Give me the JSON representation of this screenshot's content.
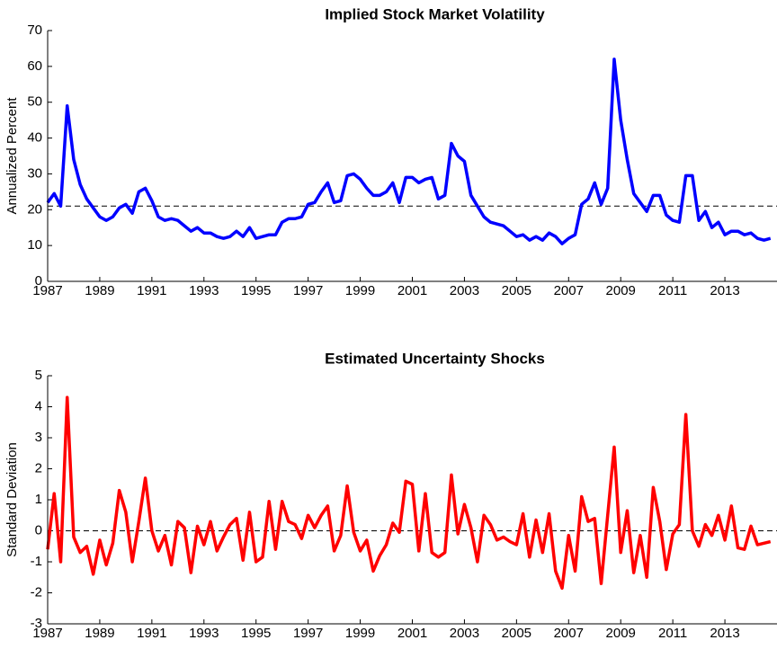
{
  "chart_data": [
    {
      "type": "line",
      "title": "Implied Stock Market Volatility",
      "ylabel": "Annualized Percent",
      "x": [
        1987,
        1987.25,
        1987.5,
        1987.75,
        1988,
        1988.25,
        1988.5,
        1988.75,
        1989,
        1989.25,
        1989.5,
        1989.75,
        1990,
        1990.25,
        1990.5,
        1990.75,
        1991,
        1991.25,
        1991.5,
        1991.75,
        1992,
        1992.25,
        1992.5,
        1992.75,
        1993,
        1993.25,
        1993.5,
        1993.75,
        1994,
        1994.25,
        1994.5,
        1994.75,
        1995,
        1995.25,
        1995.5,
        1995.75,
        1996,
        1996.25,
        1996.5,
        1996.75,
        1997,
        1997.25,
        1997.5,
        1997.75,
        1998,
        1998.25,
        1998.5,
        1998.75,
        1999,
        1999.25,
        1999.5,
        1999.75,
        2000,
        2000.25,
        2000.5,
        2000.75,
        2001,
        2001.25,
        2001.5,
        2001.75,
        2002,
        2002.25,
        2002.5,
        2002.75,
        2003,
        2003.25,
        2003.5,
        2003.75,
        2004,
        2004.25,
        2004.5,
        2004.75,
        2005,
        2005.25,
        2005.5,
        2005.75,
        2006,
        2006.25,
        2006.5,
        2006.75,
        2007,
        2007.25,
        2007.5,
        2007.75,
        2008,
        2008.25,
        2008.5,
        2008.75,
        2009,
        2009.25,
        2009.5,
        2009.75,
        2010,
        2010.25,
        2010.5,
        2010.75,
        2011,
        2011.25,
        2011.5,
        2011.75,
        2012,
        2012.25,
        2012.5,
        2012.75,
        2013,
        2013.25,
        2013.5,
        2013.75,
        2014,
        2014.25,
        2014.5,
        2014.75
      ],
      "series": [
        {
          "color": "#0000ff",
          "values": [
            22,
            24.5,
            21,
            49,
            34,
            27,
            23,
            20.5,
            18,
            17,
            18,
            20.5,
            21.5,
            19,
            25,
            26,
            22.5,
            18,
            17,
            17.5,
            17,
            15.5,
            14,
            15,
            13.5,
            13.5,
            12.5,
            12,
            12.5,
            14,
            12.5,
            15,
            12,
            12.5,
            13,
            13,
            16.5,
            17.5,
            17.5,
            18,
            21.5,
            22,
            25,
            27.5,
            22,
            22.5,
            29.5,
            30,
            28.5,
            26,
            24,
            24,
            25,
            27.5,
            22,
            29,
            29,
            27.5,
            28.5,
            29,
            23,
            24,
            38.5,
            35,
            33.5,
            24,
            21,
            18,
            16.5,
            16,
            15.5,
            14,
            12.5,
            13,
            11.5,
            12.5,
            11.5,
            13.5,
            12.5,
            10.5,
            12,
            13,
            21.5,
            23,
            27.5,
            21.5,
            26,
            62,
            45,
            34,
            24.5,
            22,
            19.5,
            24,
            24,
            18.5,
            17,
            16.5,
            29.5,
            29.5,
            17,
            19.5,
            15,
            16.5,
            13,
            14,
            14,
            13,
            13.5,
            12,
            11.5,
            12
          ]
        }
      ],
      "reference_line": 21,
      "xlim": [
        1987,
        2015
      ],
      "xticks": [
        1987,
        1989,
        1991,
        1993,
        1995,
        1997,
        1999,
        2001,
        2003,
        2005,
        2007,
        2009,
        2011,
        2013
      ],
      "ylim": [
        0,
        70
      ],
      "yticks": [
        0,
        10,
        20,
        30,
        40,
        50,
        60,
        70
      ]
    },
    {
      "type": "line",
      "title": "Estimated Uncertainty Shocks",
      "ylabel": "Standard Deviation",
      "x": [
        1987,
        1987.25,
        1987.5,
        1987.75,
        1988,
        1988.25,
        1988.5,
        1988.75,
        1989,
        1989.25,
        1989.5,
        1989.75,
        1990,
        1990.25,
        1990.5,
        1990.75,
        1991,
        1991.25,
        1991.5,
        1991.75,
        1992,
        1992.25,
        1992.5,
        1992.75,
        1993,
        1993.25,
        1993.5,
        1993.75,
        1994,
        1994.25,
        1994.5,
        1994.75,
        1995,
        1995.25,
        1995.5,
        1995.75,
        1996,
        1996.25,
        1996.5,
        1996.75,
        1997,
        1997.25,
        1997.5,
        1997.75,
        1998,
        1998.25,
        1998.5,
        1998.75,
        1999,
        1999.25,
        1999.5,
        1999.75,
        2000,
        2000.25,
        2000.5,
        2000.75,
        2001,
        2001.25,
        2001.5,
        2001.75,
        2002,
        2002.25,
        2002.5,
        2002.75,
        2003,
        2003.25,
        2003.5,
        2003.75,
        2004,
        2004.25,
        2004.5,
        2004.75,
        2005,
        2005.25,
        2005.5,
        2005.75,
        2006,
        2006.25,
        2006.5,
        2006.75,
        2007,
        2007.25,
        2007.5,
        2007.75,
        2008,
        2008.25,
        2008.5,
        2008.75,
        2009,
        2009.25,
        2009.5,
        2009.75,
        2010,
        2010.25,
        2010.5,
        2010.75,
        2011,
        2011.25,
        2011.5,
        2011.75,
        2012,
        2012.25,
        2012.5,
        2012.75,
        2013,
        2013.25,
        2013.5,
        2013.75,
        2014,
        2014.25,
        2014.5,
        2014.75
      ],
      "series": [
        {
          "color": "#ff0000",
          "values": [
            -0.6,
            1.2,
            -1.0,
            4.3,
            -0.2,
            -0.7,
            -0.5,
            -1.4,
            -0.3,
            -1.1,
            -0.4,
            1.3,
            0.6,
            -1.0,
            0.3,
            1.7,
            0.0,
            -0.65,
            -0.15,
            -1.1,
            0.3,
            0.1,
            -1.35,
            0.15,
            -0.45,
            0.3,
            -0.65,
            -0.2,
            0.2,
            0.4,
            -0.95,
            0.6,
            -1.0,
            -0.85,
            0.95,
            -0.6,
            0.95,
            0.3,
            0.2,
            -0.25,
            0.5,
            0.1,
            0.5,
            0.8,
            -0.65,
            -0.15,
            1.45,
            -0.05,
            -0.65,
            -0.3,
            -1.3,
            -0.8,
            -0.45,
            0.25,
            -0.05,
            1.6,
            1.5,
            -0.65,
            1.2,
            -0.7,
            -0.85,
            -0.7,
            1.8,
            -0.1,
            0.85,
            0.1,
            -1.0,
            0.5,
            0.2,
            -0.3,
            -0.2,
            -0.35,
            -0.45,
            0.55,
            -0.85,
            0.35,
            -0.7,
            0.55,
            -1.3,
            -1.85,
            -0.15,
            -1.3,
            1.1,
            0.3,
            0.4,
            -1.7,
            0.5,
            2.7,
            -0.7,
            0.65,
            -1.35,
            -0.15,
            -1.5,
            1.4,
            0.3,
            -1.25,
            -0.1,
            0.2,
            3.75,
            0.0,
            -0.5,
            0.2,
            -0.15,
            0.5,
            -0.3,
            0.8,
            -0.55,
            -0.6,
            0.15,
            -0.45,
            -0.4,
            -0.35
          ]
        }
      ],
      "reference_line": 0,
      "xlim": [
        1987,
        2015
      ],
      "xticks": [
        1987,
        1989,
        1991,
        1993,
        1995,
        1997,
        1999,
        2001,
        2003,
        2005,
        2007,
        2009,
        2011,
        2013
      ],
      "ylim": [
        -3,
        5
      ],
      "yticks": [
        -3,
        -2,
        -1,
        0,
        1,
        2,
        3,
        4,
        5
      ]
    }
  ]
}
